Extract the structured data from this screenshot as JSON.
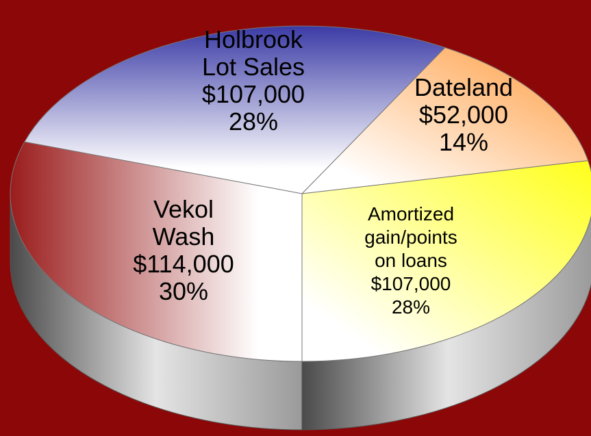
{
  "chart_data": {
    "type": "pie",
    "categories": [
      "Holbrook\nLot Sales",
      "Dateland",
      "Amortized\ngain/points\non loans",
      "Vekol\nWash"
    ],
    "values": [
      107000,
      52000,
      107000,
      114000
    ],
    "value_labels": [
      "$107,000",
      "$52,000",
      "$107,000",
      "$114,000"
    ],
    "percent_labels": [
      "28%",
      "14%",
      "28%",
      "30%"
    ],
    "colors": [
      "#3b3ba6",
      "#ff9a3c",
      "#ffff1a",
      "#9a1c1c"
    ],
    "style": "3d"
  }
}
